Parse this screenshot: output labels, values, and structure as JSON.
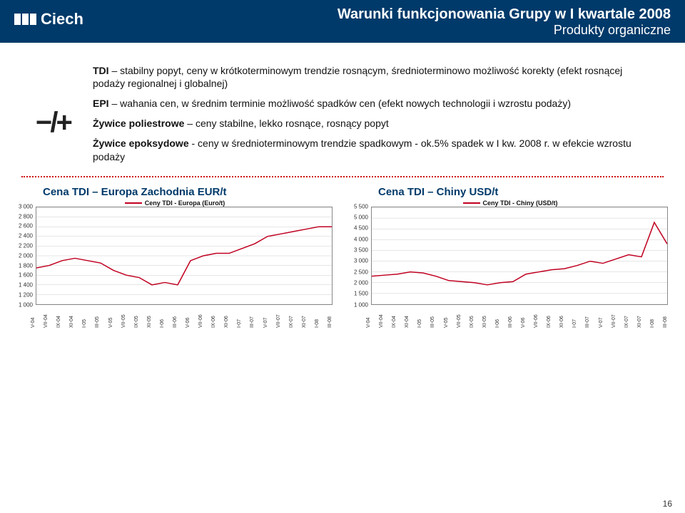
{
  "header": {
    "logo_text": "Ciech",
    "title_line1": "Warunki funkcjonowania Grupy w I kwartale 2008",
    "title_line2": "Produkty organiczne"
  },
  "symbol": "−/+",
  "bullets": {
    "b1a": "TDI",
    "b1b": " – stabilny popyt, ceny w krótkoterminowym trendzie rosnącym, średnioterminowo możliwość korekty (efekt rosnącej podaży regionalnej i globalnej)",
    "b2a": "EPI",
    "b2b": " – wahania cen, w średnim terminie możliwość spadków cen (efekt nowych technologii i wzrostu podaży)",
    "b3a": "Żywice poliestrowe",
    "b3b": " – ceny stabilne, lekko rosnące, rosnący popyt",
    "b4a": "Żywice epoksydowe",
    "b4b": " - ceny w średnioterminowym trendzie spadkowym - ok.5% spadek w I kw. 2008 r. w efekcie wzrostu podaży"
  },
  "chart1": {
    "title": "Cena TDI – Europa Zachodnia EUR/t",
    "legend": "Ceny TDI - Europa (Euro/t)",
    "ymin": 1000,
    "ymax": 3000,
    "ystep": 200,
    "color": "#c00020",
    "xlabels": [
      "V-04",
      "VII-04",
      "IX-04",
      "XI-04",
      "I-05",
      "III-05",
      "V-05",
      "VII-05",
      "IX-05",
      "XI-05",
      "I-06",
      "III-06",
      "V-06",
      "VII-06",
      "IX-06",
      "XI-06",
      "I-07",
      "III-07",
      "V-07",
      "VII-07",
      "IX-07",
      "XI-07",
      "I-08",
      "III-08"
    ],
    "values": [
      1750,
      1800,
      1900,
      1950,
      1900,
      1850,
      1700,
      1600,
      1550,
      1400,
      1450,
      1400,
      1900,
      2000,
      2050,
      2050,
      2150,
      2250,
      2400,
      2450,
      2500,
      2550,
      2600,
      2600
    ]
  },
  "chart2": {
    "title": "Cena TDI – Chiny USD/t",
    "legend": "Ceny TDI - Chiny (USD/t)",
    "ymin": 1000,
    "ymax": 5500,
    "ystep": 500,
    "color": "#c00020",
    "xlabels": [
      "V-04",
      "VII-04",
      "IX-04",
      "XI-04",
      "I-05",
      "III-05",
      "V-05",
      "VII-05",
      "IX-05",
      "XI-05",
      "I-06",
      "III-06",
      "V-06",
      "VII-06",
      "IX-06",
      "XI-06",
      "I-07",
      "III-07",
      "V-07",
      "VII-07",
      "IX-07",
      "XI-07",
      "I-08",
      "III-08"
    ],
    "values": [
      2300,
      2350,
      2400,
      2500,
      2450,
      2300,
      2100,
      2050,
      2000,
      1900,
      2000,
      2050,
      2400,
      2500,
      2600,
      2650,
      2800,
      3000,
      2900,
      3100,
      3300,
      3200,
      4800,
      3800
    ]
  },
  "page_number": "16"
}
